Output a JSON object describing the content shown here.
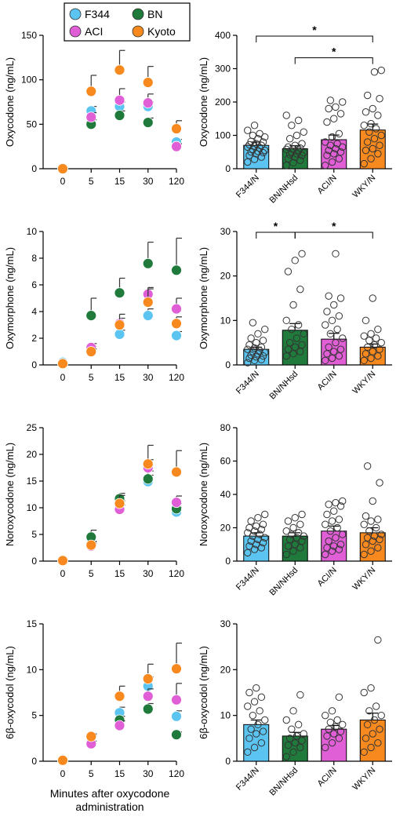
{
  "colors": {
    "F344": "#5bc4f1",
    "BN": "#1f7a3c",
    "ACI": "#e15fd6",
    "Kyoto": "#f7891e"
  },
  "legend": {
    "entries": [
      "F344",
      "BN",
      "ACI",
      "Kyoto"
    ]
  },
  "common_xlabel": "Minutes after oxycodone administration",
  "chart_data": [
    {
      "type": "scatter",
      "ylabel": "Oxycodone (ng/mL)",
      "ylim": [
        0,
        150
      ],
      "yticks": [
        0,
        50,
        100,
        150
      ],
      "categories": [
        "0",
        "5",
        "15",
        "30",
        "120"
      ],
      "series": [
        {
          "name": "F344",
          "values": [
            0,
            65,
            70,
            70,
            30
          ],
          "err": [
            0,
            5,
            5,
            5,
            3
          ]
        },
        {
          "name": "BN",
          "values": [
            0,
            50,
            60,
            52,
            25
          ],
          "err": [
            0,
            5,
            5,
            5,
            3
          ]
        },
        {
          "name": "ACI",
          "values": [
            0,
            58,
            77,
            74,
            25
          ],
          "err": [
            0,
            5,
            13,
            10,
            3
          ]
        },
        {
          "name": "Kyoto",
          "values": [
            0,
            87,
            111,
            97,
            45
          ],
          "err": [
            0,
            18,
            22,
            18,
            9
          ]
        }
      ]
    },
    {
      "type": "bar",
      "ylabel": "Oxycodone (ng/mL)",
      "ylim": [
        0,
        400
      ],
      "yticks": [
        0,
        100,
        200,
        300,
        400
      ],
      "categories": [
        "F344/N",
        "BN/NHsd",
        "ACI/N",
        "WKY/N"
      ],
      "values": [
        70,
        60,
        87,
        116
      ],
      "err": [
        10,
        9,
        14,
        18
      ],
      "colors": [
        "#5bc4f1",
        "#1f7a3c",
        "#e15fd6",
        "#f7891e"
      ],
      "points": [
        [
          20,
          28,
          35,
          40,
          45,
          48,
          50,
          52,
          55,
          58,
          62,
          65,
          68,
          70,
          72,
          75,
          80,
          82,
          90,
          95,
          100,
          105,
          115,
          130
        ],
        [
          10,
          18,
          25,
          30,
          35,
          40,
          42,
          45,
          48,
          50,
          55,
          58,
          60,
          62,
          65,
          70,
          75,
          90,
          100,
          110,
          130,
          145,
          160
        ],
        [
          10,
          20,
          30,
          40,
          45,
          50,
          55,
          60,
          65,
          70,
          75,
          80,
          95,
          105,
          140,
          150,
          165,
          180,
          185,
          200,
          205
        ],
        [
          15,
          30,
          45,
          55,
          60,
          70,
          80,
          90,
          100,
          110,
          120,
          130,
          135,
          160,
          170,
          180,
          210,
          220,
          290,
          295
        ]
      ],
      "brackets": [
        {
          "from": 0,
          "to": 3,
          "y": 400,
          "label": "*"
        },
        {
          "from": 1,
          "to": 3,
          "y": 335,
          "label": "*"
        }
      ]
    },
    {
      "type": "scatter",
      "ylabel": "Oxymorphone (ng/mL)",
      "ylim": [
        0,
        10
      ],
      "yticks": [
        0,
        2,
        4,
        6,
        8,
        10
      ],
      "categories": [
        "0",
        "5",
        "15",
        "30",
        "120"
      ],
      "series": [
        {
          "name": "F344",
          "values": [
            0.2,
            1.2,
            2.3,
            3.7,
            2.2
          ],
          "err": [
            0,
            0.2,
            0.3,
            0.5,
            0.3
          ]
        },
        {
          "name": "BN",
          "values": [
            0.1,
            3.7,
            5.4,
            7.6,
            7.1
          ],
          "err": [
            0,
            1.3,
            1.1,
            1.6,
            2.4
          ]
        },
        {
          "name": "ACI",
          "values": [
            0.1,
            1.3,
            3.1,
            5.3,
            4.2
          ],
          "err": [
            0,
            0.3,
            0.4,
            0.5,
            0.8
          ]
        },
        {
          "name": "Kyoto",
          "values": [
            0.1,
            1.0,
            3.0,
            4.7,
            3.1
          ],
          "err": [
            0,
            0.2,
            0.8,
            1.0,
            0.5
          ]
        }
      ]
    },
    {
      "type": "bar",
      "ylabel": "Oxymorphone (ng/mL)",
      "ylim": [
        0,
        30
      ],
      "yticks": [
        0,
        10,
        20,
        30
      ],
      "categories": [
        "F344/N",
        "BN/NHsd",
        "ACI/N",
        "WKY/N"
      ],
      "values": [
        3.5,
        7.8,
        5.8,
        4.0
      ],
      "err": [
        0.5,
        1.5,
        1.3,
        0.7
      ],
      "colors": [
        "#5bc4f1",
        "#1f7a3c",
        "#e15fd6",
        "#f7891e"
      ],
      "points": [
        [
          0.5,
          1,
          1.2,
          1.5,
          1.8,
          2,
          2.2,
          2.5,
          2.8,
          3,
          3.2,
          3.5,
          3.8,
          4,
          4.5,
          5,
          5.5,
          6,
          7,
          8,
          9.5
        ],
        [
          2,
          2.5,
          3,
          3.5,
          4,
          4.5,
          5,
          6,
          7,
          8,
          9,
          10,
          13.5,
          17,
          21,
          23.5,
          25
        ],
        [
          1,
          1.5,
          2,
          2.5,
          3,
          3.5,
          4,
          5,
          6,
          7,
          8,
          9,
          10,
          11,
          12,
          13.5,
          15,
          15.5,
          25
        ],
        [
          1,
          1.5,
          2,
          2.5,
          3,
          3.5,
          4,
          4.5,
          5,
          5.5,
          6,
          6.5,
          7,
          8,
          10,
          15
        ]
      ],
      "brackets": [
        {
          "from": 0,
          "to": 1,
          "y": 30,
          "label": "*"
        },
        {
          "from": 1,
          "to": 3,
          "y": 30,
          "label": "*"
        }
      ]
    },
    {
      "type": "scatter",
      "ylabel": "Noroxycodone (ng/mL)",
      "ylim": [
        0,
        25
      ],
      "yticks": [
        0,
        5,
        10,
        15,
        20,
        25
      ],
      "categories": [
        "0",
        "5",
        "15",
        "30",
        "120"
      ],
      "series": [
        {
          "name": "F344",
          "values": [
            0.2,
            3.2,
            10.5,
            14.9,
            9.2
          ],
          "err": [
            0,
            0.5,
            0.8,
            1.2,
            0.8
          ]
        },
        {
          "name": "BN",
          "values": [
            0.1,
            4.5,
            11.7,
            15.4,
            9.8
          ],
          "err": [
            0,
            1.3,
            1.0,
            1.5,
            1.0
          ]
        },
        {
          "name": "ACI",
          "values": [
            0.1,
            2.8,
            9.7,
            17.5,
            11.0
          ],
          "err": [
            0,
            0.5,
            0.8,
            1.5,
            1.2
          ]
        },
        {
          "name": "Kyoto",
          "values": [
            0.1,
            3.0,
            10.8,
            18.2,
            16.7
          ],
          "err": [
            0,
            0.6,
            1.5,
            3.5,
            4.0
          ]
        }
      ]
    },
    {
      "type": "bar",
      "ylabel": "Noroxycodone (ng/mL)",
      "ylim": [
        0,
        80
      ],
      "yticks": [
        0,
        20,
        40,
        60,
        80
      ],
      "categories": [
        "F344/N",
        "BN/NHsd",
        "ACI/N",
        "WKY/N"
      ],
      "values": [
        15,
        15,
        18,
        17
      ],
      "err": [
        2,
        2,
        3,
        3
      ],
      "colors": [
        "#5bc4f1",
        "#1f7a3c",
        "#e15fd6",
        "#f7891e"
      ],
      "points": [
        [
          5,
          7,
          8,
          9,
          10,
          11,
          12,
          13,
          14,
          15,
          16,
          17,
          18,
          19,
          20,
          21,
          22,
          24,
          26,
          28
        ],
        [
          4,
          6,
          8,
          9,
          10,
          12,
          13,
          14,
          15,
          16,
          17,
          18,
          20,
          22,
          24,
          26,
          28
        ],
        [
          4,
          6,
          7,
          8,
          9,
          10,
          12,
          14,
          16,
          18,
          20,
          22,
          24,
          25,
          28,
          30,
          33,
          34,
          35,
          36
        ],
        [
          4,
          6,
          8,
          10,
          12,
          13,
          14,
          15,
          16,
          18,
          20,
          22,
          24,
          25,
          27,
          36,
          47,
          57
        ]
      ],
      "brackets": []
    },
    {
      "type": "scatter",
      "ylabel": "6β-oxycodol (ng/mL)",
      "ylim": [
        0,
        15
      ],
      "yticks": [
        0,
        5,
        10,
        15
      ],
      "categories": [
        "0",
        "5",
        "15",
        "30",
        "120"
      ],
      "series": [
        {
          "name": "F344",
          "values": [
            0.2,
            2.4,
            5.3,
            8.2,
            4.9
          ],
          "err": [
            0,
            0.3,
            0.6,
            1.0,
            0.6
          ]
        },
        {
          "name": "BN",
          "values": [
            0.1,
            2.6,
            4.5,
            5.7,
            2.9
          ],
          "err": [
            0,
            0.3,
            0.4,
            0.6,
            0.3
          ]
        },
        {
          "name": "ACI",
          "values": [
            0.1,
            1.9,
            3.9,
            7.1,
            6.7
          ],
          "err": [
            0,
            0.3,
            0.5,
            0.8,
            1.8
          ]
        },
        {
          "name": "Kyoto",
          "values": [
            0.1,
            2.7,
            7.1,
            9.0,
            10.1
          ],
          "err": [
            0,
            0.3,
            1.1,
            1.6,
            2.8
          ]
        }
      ]
    },
    {
      "type": "bar",
      "ylabel": "6β-oxycodol (ng/mL)",
      "ylim": [
        0,
        30
      ],
      "yticks": [
        0,
        10,
        20,
        30
      ],
      "categories": [
        "F344/N",
        "BN/NHsd",
        "ACI/N",
        "WKY/N"
      ],
      "values": [
        8,
        5.5,
        7,
        9
      ],
      "err": [
        1,
        0.8,
        0.8,
        1.5
      ],
      "colors": [
        "#5bc4f1",
        "#1f7a3c",
        "#e15fd6",
        "#f7891e"
      ],
      "points": [
        [
          2,
          3,
          4,
          5,
          6,
          6.5,
          7,
          8,
          9,
          10,
          11,
          12,
          13,
          14,
          15,
          16
        ],
        [
          1,
          2,
          3,
          3.5,
          4,
          4.5,
          5,
          5.5,
          6,
          7,
          8,
          9,
          11,
          14.5
        ],
        [
          3,
          4,
          5,
          5.5,
          6,
          6.5,
          7,
          7.5,
          8,
          8.5,
          9,
          10,
          11,
          14
        ],
        [
          2,
          3,
          4,
          5,
          6,
          7,
          8,
          9,
          10,
          11,
          12,
          15,
          16,
          26.5
        ]
      ],
      "brackets": []
    }
  ]
}
